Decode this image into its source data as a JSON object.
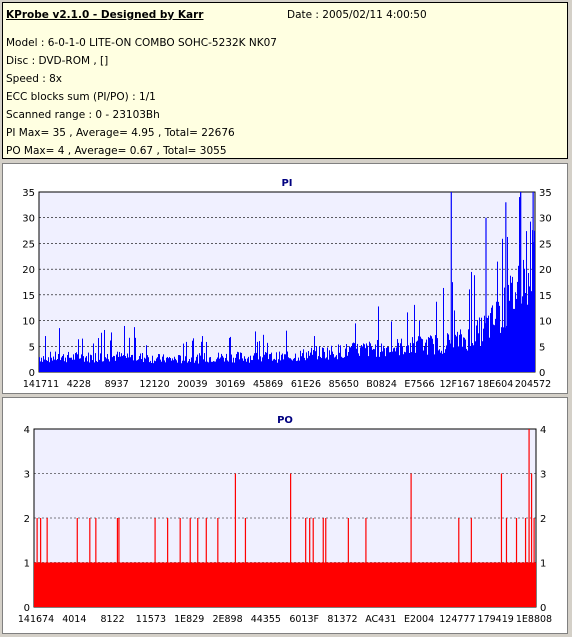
{
  "header": {
    "title": "KProbe v2.1.0 - Designed by Karr",
    "date": "Date : 2005/02/11 4:00:50",
    "model": "Model : 6-0-1-0 LITE-ON COMBO SOHC-5232K NK07",
    "disc": "Disc : DVD-ROM ,  []",
    "speed": "Speed : 8x",
    "ecc": "ECC blocks sum (PI/PO) : 1/1",
    "range": "Scanned range : 0 - 23103Bh",
    "pi_stats": "PI Max= 35 , Average= 4.95 , Total= 22676",
    "po_stats": "PO Max= 4 , Average= 0.67 , Total= 3055"
  },
  "colors": {
    "pi": "#0000ff",
    "po": "#ff0000",
    "background": "#f0f0ff",
    "grid": "#000000"
  },
  "chart_data": [
    {
      "type": "bar",
      "title": "PI",
      "ylim": [
        0,
        35
      ],
      "yticks": [
        0,
        5,
        10,
        15,
        20,
        25,
        30,
        35
      ],
      "xticks": [
        "141711",
        "4228",
        "8937",
        "12120",
        "20039",
        "30169",
        "45869",
        "61E26",
        "85650",
        "B0824",
        "E7566",
        "12F167",
        "18E604",
        "204572"
      ],
      "profile_x": [
        0,
        0.05,
        0.1,
        0.15,
        0.2,
        0.25,
        0.3,
        0.35,
        0.4,
        0.45,
        0.5,
        0.55,
        0.6,
        0.65,
        0.7,
        0.75,
        0.8,
        0.85,
        0.88,
        0.91,
        0.94,
        0.96,
        0.98,
        1.0
      ],
      "profile_y": [
        4,
        4,
        4,
        4.2,
        4,
        3.5,
        3.4,
        4,
        4,
        4,
        4,
        5,
        5.5,
        6,
        6.5,
        7,
        7.5,
        8.5,
        10,
        13,
        17,
        22,
        28,
        33
      ],
      "spikes": [
        {
          "x": 0.83,
          "y": 35
        },
        {
          "x": 0.9,
          "y": 30
        },
        {
          "x": 0.94,
          "y": 33
        },
        {
          "x": 0.97,
          "y": 35
        },
        {
          "x": 0.995,
          "y": 35
        }
      ]
    },
    {
      "type": "bar",
      "title": "PO",
      "ylim": [
        0,
        4
      ],
      "yticks": [
        0,
        1,
        2,
        3,
        4
      ],
      "xticks": [
        "141674",
        "4014",
        "8122",
        "11573",
        "1E829",
        "2E898",
        "44355",
        "6013F",
        "81372",
        "AC431",
        "E2004",
        "124777",
        "179419",
        "1E8808"
      ],
      "baseline": 1,
      "spikes": [
        {
          "x": 0.005,
          "y": 2
        },
        {
          "x": 0.012,
          "y": 2
        },
        {
          "x": 0.025,
          "y": 2
        },
        {
          "x": 0.085,
          "y": 2
        },
        {
          "x": 0.11,
          "y": 2
        },
        {
          "x": 0.122,
          "y": 2
        },
        {
          "x": 0.165,
          "y": 2
        },
        {
          "x": 0.168,
          "y": 2
        },
        {
          "x": 0.24,
          "y": 2
        },
        {
          "x": 0.265,
          "y": 2
        },
        {
          "x": 0.29,
          "y": 2
        },
        {
          "x": 0.31,
          "y": 2
        },
        {
          "x": 0.325,
          "y": 2
        },
        {
          "x": 0.342,
          "y": 2
        },
        {
          "x": 0.365,
          "y": 2
        },
        {
          "x": 0.4,
          "y": 3
        },
        {
          "x": 0.42,
          "y": 2
        },
        {
          "x": 0.51,
          "y": 3
        },
        {
          "x": 0.54,
          "y": 2
        },
        {
          "x": 0.548,
          "y": 2
        },
        {
          "x": 0.555,
          "y": 2
        },
        {
          "x": 0.575,
          "y": 2
        },
        {
          "x": 0.58,
          "y": 2
        },
        {
          "x": 0.625,
          "y": 2
        },
        {
          "x": 0.66,
          "y": 2
        },
        {
          "x": 0.75,
          "y": 3
        },
        {
          "x": 0.845,
          "y": 2
        },
        {
          "x": 0.87,
          "y": 2
        },
        {
          "x": 0.93,
          "y": 3
        },
        {
          "x": 0.94,
          "y": 2
        },
        {
          "x": 0.96,
          "y": 2
        },
        {
          "x": 0.978,
          "y": 2
        },
        {
          "x": 0.985,
          "y": 4
        },
        {
          "x": 0.99,
          "y": 3
        },
        {
          "x": 0.995,
          "y": 2
        }
      ]
    }
  ]
}
